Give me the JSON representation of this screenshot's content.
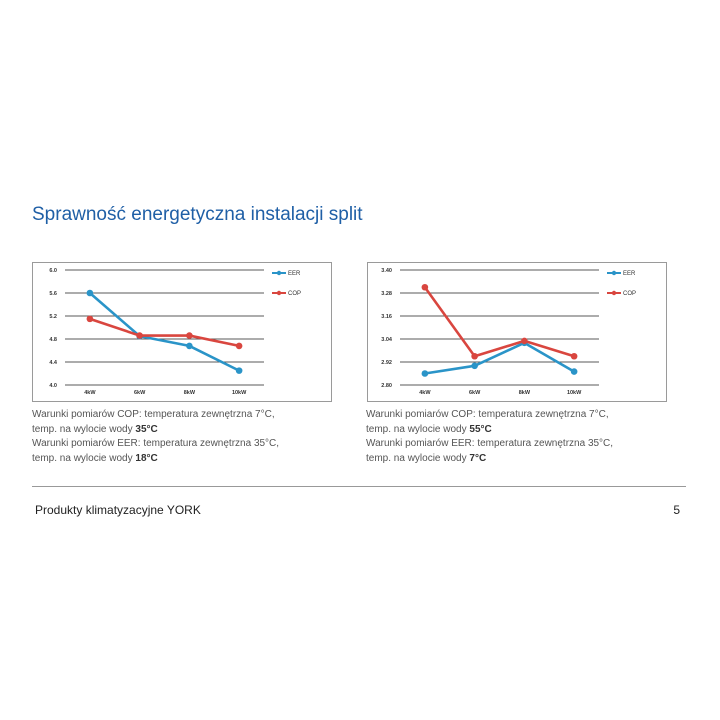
{
  "page": {
    "title": "Sprawność energetyczna instalacji split",
    "footer": "Produkty klimatyzacyjne YORK",
    "page_number": "5",
    "colors": {
      "title": "#1f5fa6",
      "eer": "#2a94c8",
      "cop": "#d9463f"
    }
  },
  "notes": [
    {
      "line1": "Warunki pomiarów COP: temperatura zewnętrzna 7°C,",
      "line2_prefix": "temp. na wylocie wody ",
      "line2_bold": "35°C",
      "line3": "Warunki pomiarów EER: temperatura zewnętrzna 35°C,",
      "line4_prefix": "temp. na wylocie wody ",
      "line4_bold": "18°C"
    },
    {
      "line1": "Warunki pomiarów COP: temperatura zewnętrzna 7°C,",
      "line2_prefix": "temp. na wylocie wody ",
      "line2_bold": "55°C",
      "line3": "Warunki pomiarów EER: temperatura zewnętrzna 35°C,",
      "line4_prefix": "temp. na wylocie wody ",
      "line4_bold": "7°C"
    }
  ],
  "chart_data": [
    {
      "type": "line",
      "categories": [
        "4kW",
        "6kW",
        "8kW",
        "10kW"
      ],
      "y_ticks": [
        "6.0",
        "5.6",
        "5.2",
        "4.8",
        "4.4",
        "4.0"
      ],
      "ylim": [
        4.0,
        6.0
      ],
      "grid": true,
      "legend_position": "top-right",
      "series": [
        {
          "name": "EER",
          "color": "#2a94c8",
          "values": [
            5.6,
            4.85,
            4.68,
            4.25
          ]
        },
        {
          "name": "COP",
          "color": "#d9463f",
          "values": [
            5.15,
            4.86,
            4.86,
            4.68
          ]
        }
      ]
    },
    {
      "type": "line",
      "categories": [
        "4kW",
        "6kW",
        "8kW",
        "10kW"
      ],
      "y_ticks": [
        "3.40",
        "3.28",
        "3.16",
        "3.04",
        "2.92",
        "2.80"
      ],
      "ylim": [
        2.8,
        3.4
      ],
      "grid": true,
      "legend_position": "top-right",
      "series": [
        {
          "name": "EER",
          "color": "#2a94c8",
          "values": [
            2.86,
            2.9,
            3.02,
            2.87
          ]
        },
        {
          "name": "COP",
          "color": "#d9463f",
          "values": [
            3.31,
            2.95,
            3.03,
            2.95
          ]
        }
      ]
    }
  ]
}
